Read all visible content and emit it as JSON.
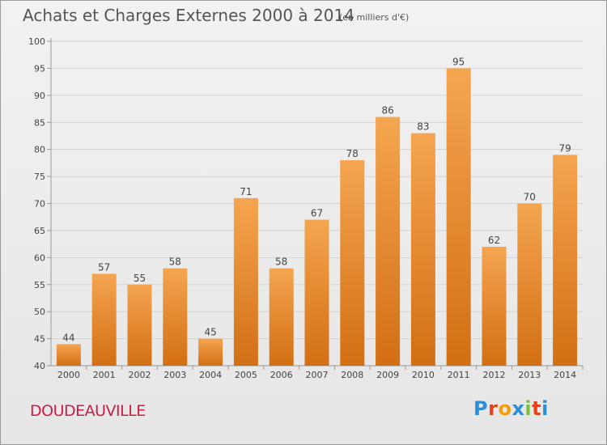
{
  "title": "Achats et Charges Externes 2000 à 2014",
  "subtitle": "(en milliers d'€)",
  "commune": "DOUDEAUVILLE",
  "logo": {
    "text": "Proxiti",
    "letter_colors": [
      "#2b8fd8",
      "#e2431b",
      "#f39c12",
      "#2b8fd8",
      "#7bc043",
      "#e2431b",
      "#2b8fd8"
    ]
  },
  "colors": {
    "bar_light": "#f5a550",
    "bar_dark": "#d26f14",
    "grid": "#d2d2d2",
    "axis": "#9a9a9a",
    "text": "#555555",
    "commune": "#c82045"
  },
  "chart_data": {
    "type": "bar",
    "categories": [
      "2000",
      "2001",
      "2002",
      "2003",
      "2004",
      "2005",
      "2006",
      "2007",
      "2008",
      "2009",
      "2010",
      "2011",
      "2012",
      "2013",
      "2014"
    ],
    "values": [
      44,
      57,
      55,
      58,
      45,
      71,
      58,
      67,
      78,
      86,
      83,
      95,
      62,
      70,
      79
    ],
    "value_labels": [
      "44",
      "57",
      "55",
      "58",
      "45",
      "71",
      "58",
      "67",
      "78",
      "86",
      "83",
      "95",
      "62",
      "70",
      "79"
    ],
    "yticks": [
      "40",
      "45",
      "50",
      "55",
      "60",
      "65",
      "70",
      "75",
      "80",
      "85",
      "90",
      "95",
      "100"
    ],
    "ylim": [
      40,
      100
    ],
    "grid": true
  }
}
